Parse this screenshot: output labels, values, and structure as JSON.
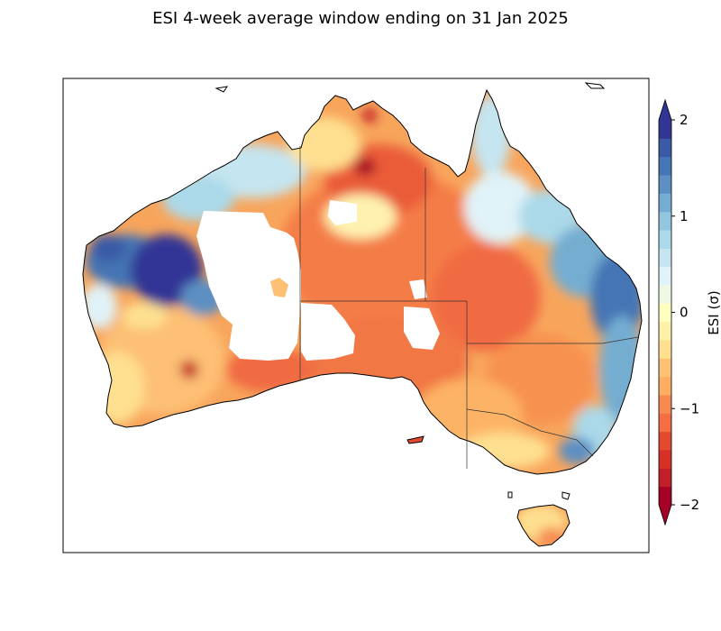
{
  "title": "ESI 4-week average window ending on 31 Jan 2025",
  "colorbar": {
    "label": "ESI (σ)",
    "min": -2,
    "max": 2,
    "extend": "both",
    "ticks": [
      {
        "value": 2,
        "label": "2"
      },
      {
        "value": 1,
        "label": "1"
      },
      {
        "value": 0,
        "label": "0"
      },
      {
        "value": -1,
        "label": "−1"
      },
      {
        "value": -2,
        "label": "−2"
      }
    ],
    "colors": [
      "#a50026",
      "#c11f27",
      "#d73027",
      "#e2492f",
      "#f46d43",
      "#f68a51",
      "#fdae61",
      "#fdc274",
      "#fee090",
      "#fdf0a8",
      "#ffffbf",
      "#f0f8e4",
      "#e0f3f8",
      "#c5e5f0",
      "#abd9e9",
      "#92c5de",
      "#74add1",
      "#5d8fc3",
      "#4575b4",
      "#3b5aa6",
      "#313695"
    ]
  },
  "colors": {
    "ocean": "#ffffff",
    "nodata": "#ffffff",
    "coast": "#000000"
  }
}
